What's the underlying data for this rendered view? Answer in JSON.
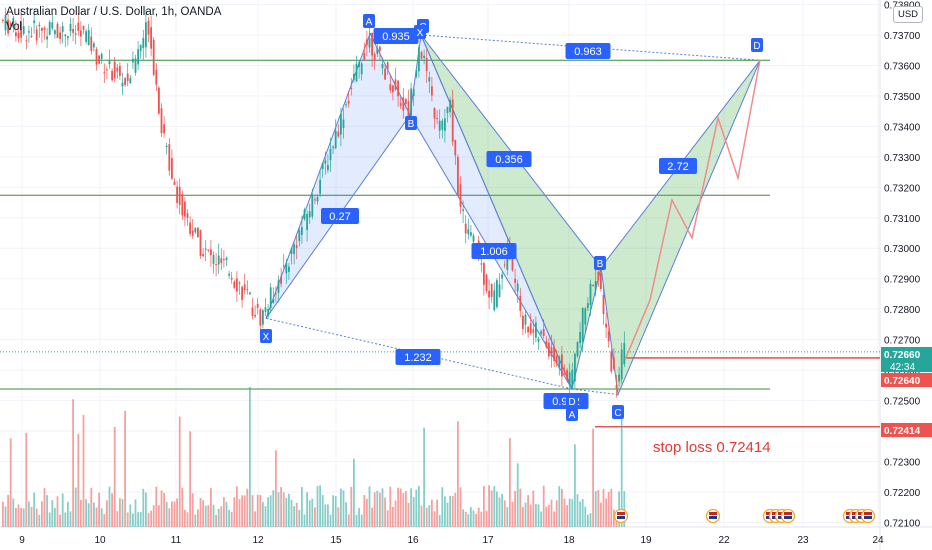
{
  "header": {
    "title": "Australian Dollar / U.S. Dollar, 1h, OANDA",
    "volume_label": "Vol"
  },
  "currency_badge": "USD",
  "stop_loss_text": "stop loss 0.72414",
  "colors": {
    "up": "#26a69a",
    "down": "#ef5350",
    "blue": "#2962ff",
    "green_line": "#388e3c",
    "red_line": "#e53935"
  },
  "chart_data": {
    "type": "candlestick",
    "y_axis": {
      "ticks": [
        "0.73800",
        "0.73700",
        "0.73600",
        "0.73500",
        "0.73400",
        "0.73300",
        "0.73200",
        "0.73100",
        "0.73000",
        "0.72900",
        "0.72800",
        "0.72700",
        "0.72600",
        "0.72500",
        "0.72400",
        "0.72300",
        "0.72200",
        "0.72100"
      ],
      "min": 0.72085,
      "max": 0.73805
    },
    "x_axis": {
      "ticks": [
        "9",
        "10",
        "11",
        "12",
        "15",
        "16",
        "17",
        "18",
        "19",
        "22",
        "23",
        "24"
      ]
    },
    "price_labels": [
      {
        "value": "0.72660",
        "sub": "42:34",
        "color": "#26a69a"
      },
      {
        "value": "0.72640",
        "color": "#ef5350"
      },
      {
        "value": "0.72414",
        "color": "#ef5350"
      }
    ],
    "horizontal_levels": [
      {
        "price": 0.73617,
        "color": "green"
      },
      {
        "price": 0.73174,
        "color": "green"
      },
      {
        "price": 0.72538,
        "color": "green"
      },
      {
        "price": 0.72414,
        "color": "red"
      }
    ],
    "patterns": [
      {
        "points": {
          "X": 0.7277,
          "A": 0.73705,
          "B": 0.73437,
          "C": 0.737,
          "D": 0.72538
        },
        "ratios": {
          "XB": "0.27",
          "AC": "0.935",
          "BD": "0.356",
          "XD": "1.232"
        }
      },
      {
        "points": {
          "X": 0.737,
          "A": 0.72538,
          "B": 0.72937,
          "C": 0.7252,
          "D": 0.73617
        },
        "ratios": {
          "XB": "1.006",
          "AC": "0.992",
          "BD": "2.72",
          "XD": "0.963"
        }
      }
    ]
  }
}
